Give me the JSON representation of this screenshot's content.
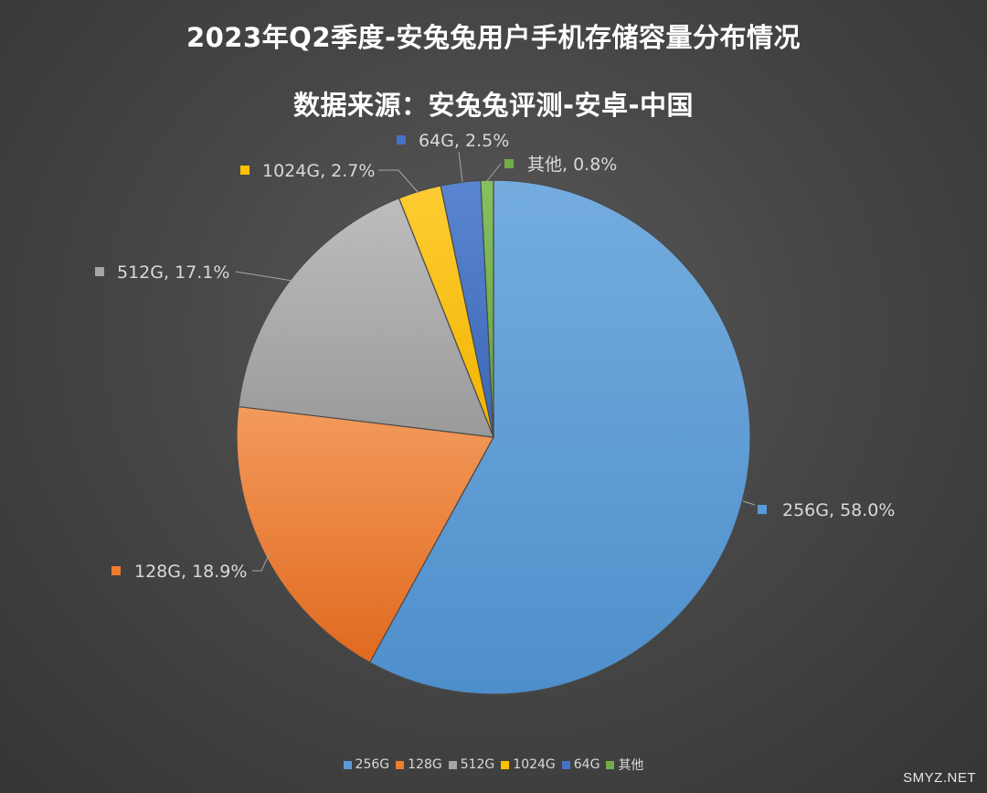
{
  "chart_data": {
    "type": "pie",
    "title": "2023年Q2季度-安兔兔用户手机存储容量分布情况",
    "subtitle": "数据来源：安兔兔评测-安卓-中国",
    "slices": [
      {
        "label": "256G",
        "value": 58.0,
        "display": "256G, 58.0%",
        "color": "#5b9bd5"
      },
      {
        "label": "128G",
        "value": 18.9,
        "display": "128G, 18.9%",
        "color": "#ed7d31"
      },
      {
        "label": "512G",
        "value": 17.1,
        "display": "512G, 17.1%",
        "color": "#a5a5a5"
      },
      {
        "label": "1024G",
        "value": 2.7,
        "display": "1024G, 2.7%",
        "color": "#ffc000"
      },
      {
        "label": "64G",
        "value": 2.5,
        "display": "64G, 2.5%",
        "color": "#4472c4"
      },
      {
        "label": "其他",
        "value": 0.8,
        "display": "其他, 0.8%",
        "color": "#70ad47"
      }
    ],
    "legend_position": "bottom"
  },
  "watermark": "SMYZ.NET"
}
